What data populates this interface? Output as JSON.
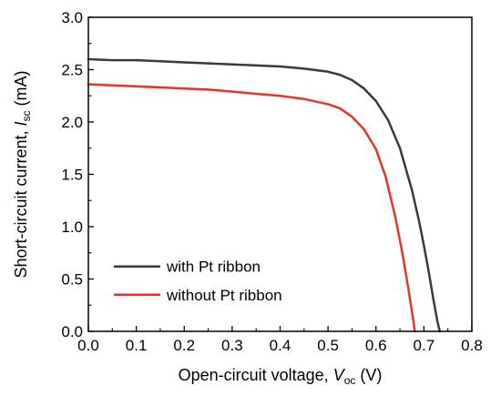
{
  "chart_data": {
    "type": "line",
    "xlabel": {
      "prefix": "Open-circuit voltage, ",
      "symbol": "V",
      "subscript": "oc",
      "suffix": " (V)"
    },
    "ylabel": {
      "prefix": "Short-circuit current, ",
      "symbol": "I",
      "subscript": "sc",
      "suffix": " (mA)"
    },
    "xlim": [
      0.0,
      0.8
    ],
    "ylim": [
      0.0,
      3.0
    ],
    "x_ticks": [
      "0.0",
      "0.1",
      "0.2",
      "0.3",
      "0.4",
      "0.5",
      "0.6",
      "0.7",
      "0.8"
    ],
    "y_ticks": [
      "0.0",
      "0.5",
      "1.0",
      "1.5",
      "2.0",
      "2.5",
      "3.0"
    ],
    "grid": false,
    "legend_position": "bottom-left",
    "series": [
      {
        "name": "with Pt ribbon",
        "color": "#3a3a3a",
        "x": [
          0.0,
          0.05,
          0.1,
          0.15,
          0.2,
          0.25,
          0.3,
          0.35,
          0.4,
          0.45,
          0.5,
          0.525,
          0.55,
          0.575,
          0.6,
          0.625,
          0.65,
          0.675,
          0.69,
          0.7,
          0.71,
          0.72,
          0.728,
          0.733
        ],
        "y": [
          2.6,
          2.59,
          2.59,
          2.58,
          2.57,
          2.56,
          2.55,
          2.54,
          2.53,
          2.51,
          2.48,
          2.45,
          2.4,
          2.32,
          2.2,
          2.02,
          1.75,
          1.35,
          1.05,
          0.82,
          0.57,
          0.3,
          0.1,
          0.0
        ]
      },
      {
        "name": "without Pt ribbon",
        "color": "#e8322b",
        "x": [
          0.0,
          0.05,
          0.1,
          0.15,
          0.2,
          0.25,
          0.3,
          0.35,
          0.4,
          0.45,
          0.5,
          0.525,
          0.55,
          0.575,
          0.6,
          0.62,
          0.64,
          0.655,
          0.665,
          0.672,
          0.678,
          0.681
        ],
        "y": [
          2.36,
          2.35,
          2.34,
          2.33,
          2.32,
          2.31,
          2.29,
          2.27,
          2.25,
          2.22,
          2.17,
          2.13,
          2.05,
          1.93,
          1.74,
          1.48,
          1.1,
          0.75,
          0.48,
          0.28,
          0.1,
          0.0
        ]
      }
    ]
  }
}
